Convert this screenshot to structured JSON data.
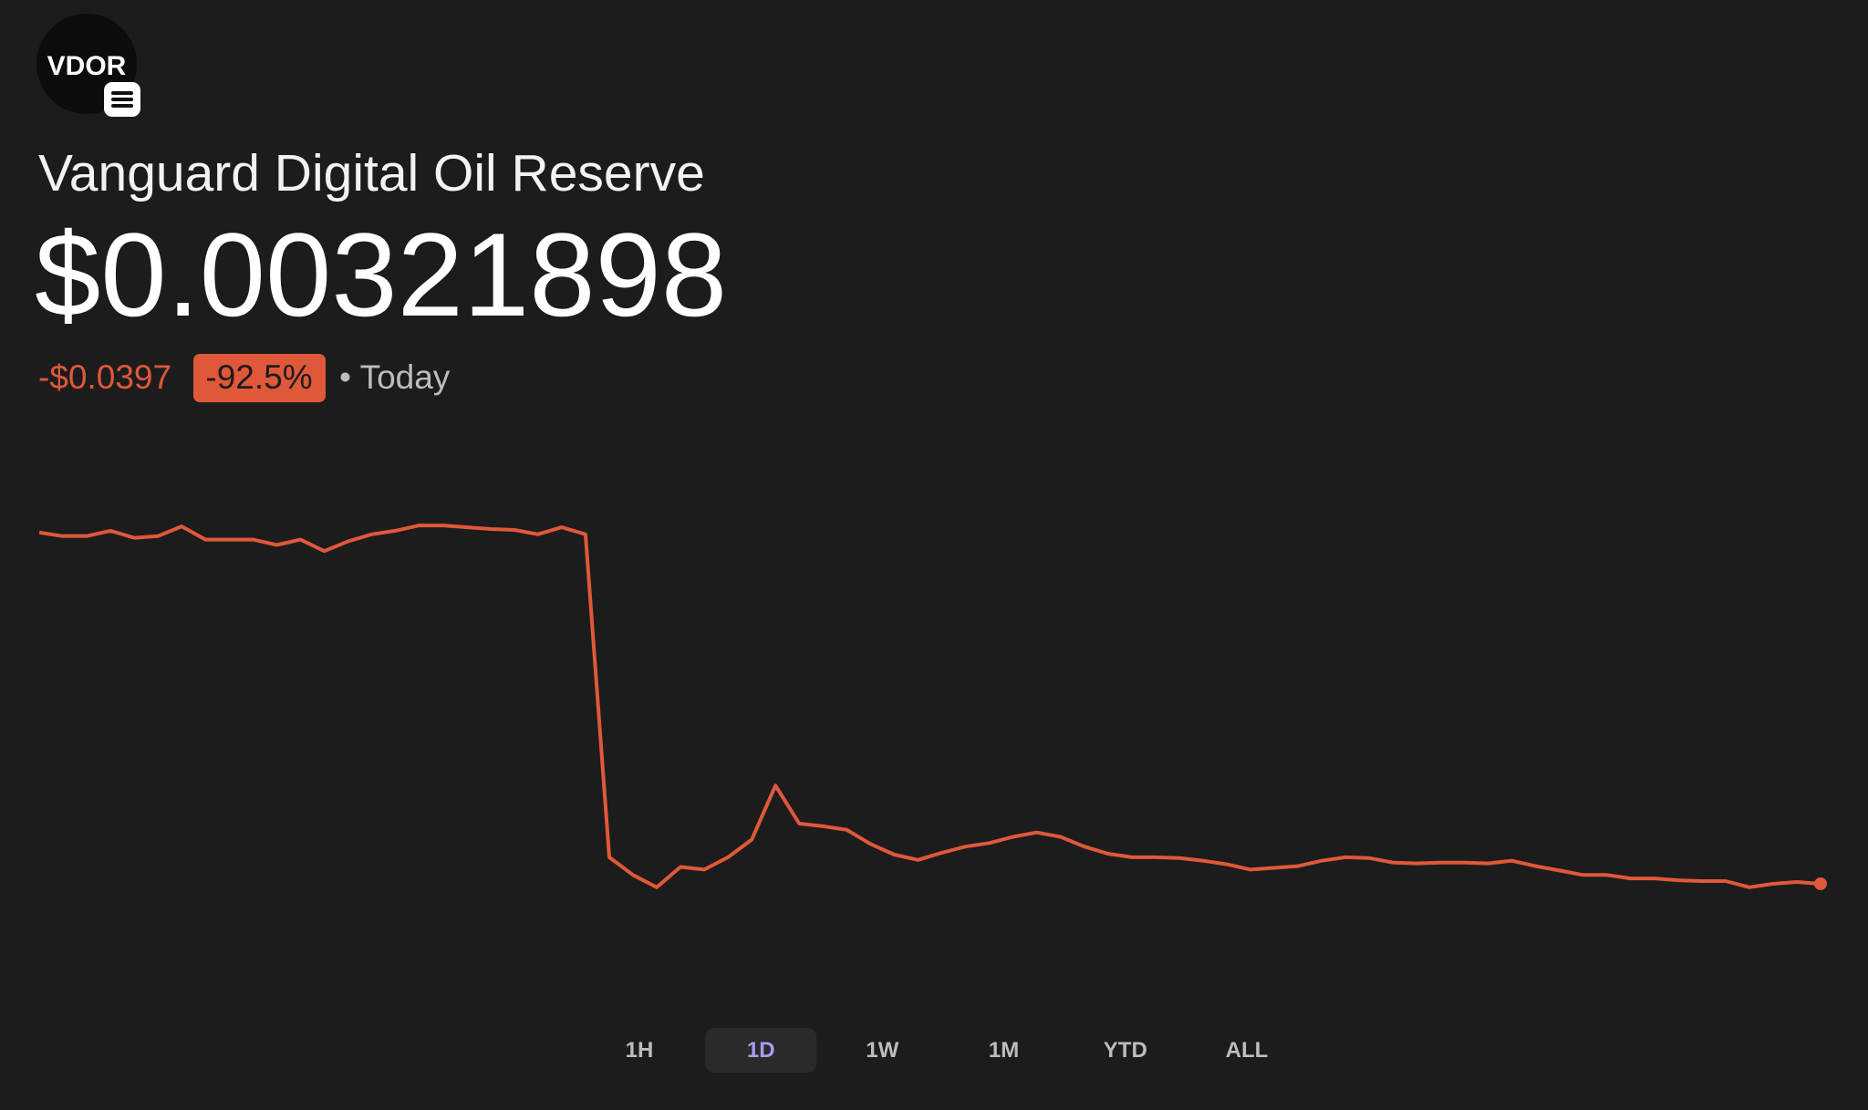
{
  "header": {
    "logo_text": "VDOR",
    "name": "Vanguard Digital Oil Reserve",
    "price": "$0.00321898",
    "change": "-$0.0397",
    "change_pct": "-92.5%",
    "period": "• Today"
  },
  "chart_data": {
    "type": "line",
    "color": "#e0583a",
    "ylim": [
      0,
      0.05
    ],
    "values": [
      0.0429,
      0.0425,
      0.0425,
      0.0431,
      0.0423,
      0.0425,
      0.0436,
      0.0421,
      0.0421,
      0.0421,
      0.0415,
      0.0421,
      0.0408,
      0.0419,
      0.0427,
      0.0431,
      0.0437,
      0.0437,
      0.0435,
      0.0433,
      0.0432,
      0.0427,
      0.0435,
      0.0427,
      0.0062,
      0.0042,
      0.0028,
      0.0051,
      0.0048,
      0.0062,
      0.0082,
      0.0143,
      0.01,
      0.0097,
      0.0093,
      0.0077,
      0.0065,
      0.0059,
      0.0067,
      0.0074,
      0.0078,
      0.0085,
      0.009,
      0.0085,
      0.0074,
      0.0066,
      0.0062,
      0.0062,
      0.0061,
      0.0058,
      0.0054,
      0.0048,
      0.005,
      0.0052,
      0.0058,
      0.0062,
      0.0061,
      0.0056,
      0.0055,
      0.0056,
      0.0056,
      0.0055,
      0.0058,
      0.0052,
      0.0047,
      0.0042,
      0.0042,
      0.0038,
      0.0038,
      0.0036,
      0.0035,
      0.0035,
      0.0028,
      0.0032,
      0.0034,
      0.0032
    ]
  },
  "ranges": {
    "options": [
      "1H",
      "1D",
      "1W",
      "1M",
      "YTD",
      "ALL"
    ],
    "selected": "1D"
  }
}
